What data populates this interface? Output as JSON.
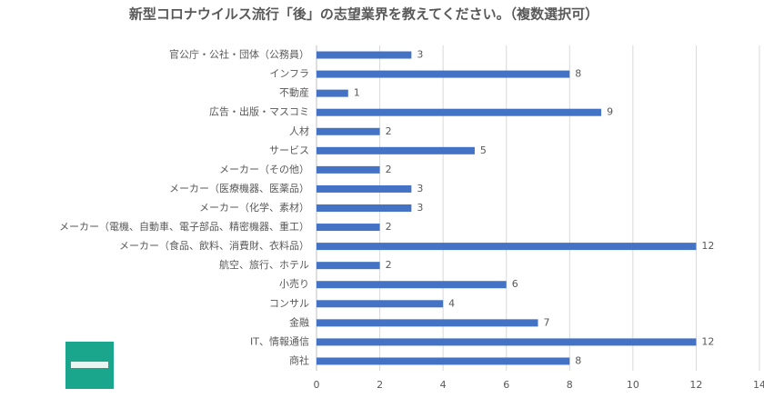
{
  "chart_data": {
    "type": "bar",
    "orientation": "horizontal",
    "title": "新型コロナウイルス流行「後」の志望業界を教えてください。（複数選択可）",
    "categories": [
      "官公庁・公社・団体（公務員）",
      "インフラ",
      "不動産",
      "広告・出版・マスコミ",
      "人材",
      "サービス",
      "メーカー（その他）",
      "メーカー（医療機器、医薬品）",
      "メーカー（化学、素材）",
      "メーカー（電機、自動車、電子部品、精密機器、重工）",
      "メーカー（食品、飲料、消費財、衣料品）",
      "航空、旅行、ホテル",
      "小売り",
      "コンサル",
      "金融",
      "IT、情報通信",
      "商社"
    ],
    "values": [
      3,
      8,
      1,
      9,
      2,
      5,
      2,
      3,
      3,
      2,
      12,
      2,
      6,
      4,
      7,
      12,
      8
    ],
    "color": "#4472c4",
    "xlim": [
      0,
      14
    ],
    "xticks": [
      0,
      2,
      4,
      6,
      8,
      10,
      12,
      14
    ],
    "grid": true
  }
}
